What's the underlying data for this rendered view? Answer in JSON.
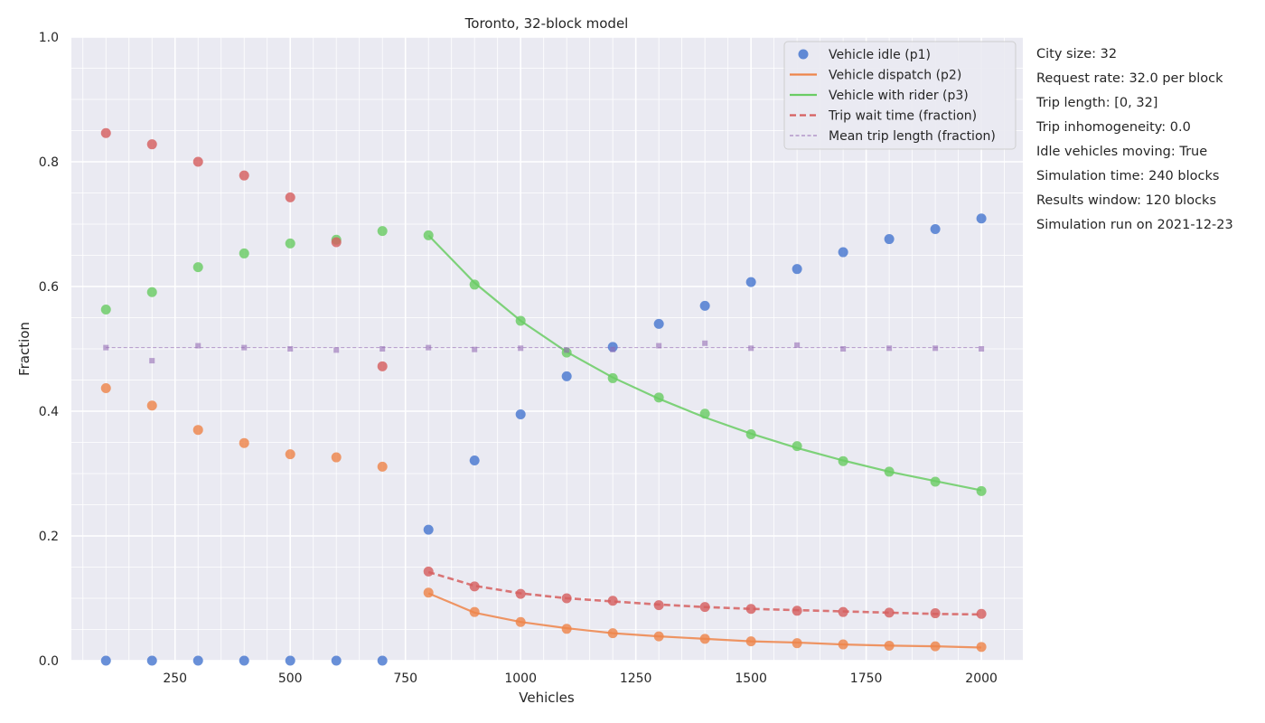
{
  "chart_data": {
    "type": "scatter",
    "title": "Toronto, 32-block model",
    "xlabel": "Vehicles",
    "ylabel": "Fraction",
    "xlim": [
      25,
      2090
    ],
    "ylim": [
      0,
      1
    ],
    "xticks": [
      250,
      500,
      750,
      1000,
      1250,
      1500,
      1750,
      2000
    ],
    "yticks": [
      0.0,
      0.2,
      0.4,
      0.6,
      0.8,
      1.0
    ],
    "grid": true,
    "legend_position": "top-right",
    "x": [
      100,
      200,
      300,
      400,
      500,
      600,
      700,
      800,
      900,
      1000,
      1100,
      1200,
      1300,
      1400,
      1500,
      1600,
      1700,
      1800,
      1900,
      2000
    ],
    "series": [
      {
        "name": "Vehicle idle (p1)",
        "color": "#4878d0",
        "marker": "circle",
        "values": [
          0.0,
          0.0,
          0.0,
          0.0,
          0.0,
          0.0,
          0.0,
          0.21,
          0.321,
          0.395,
          0.456,
          0.503,
          0.54,
          0.569,
          0.607,
          0.628,
          0.655,
          0.676,
          0.692,
          0.709
        ]
      },
      {
        "name": "Vehicle dispatch (p2)",
        "color": "#ee854a",
        "marker": "circle",
        "values": [
          0.437,
          0.409,
          0.37,
          0.349,
          0.331,
          0.326,
          0.311,
          0.109,
          0.078,
          0.062,
          0.051,
          0.044,
          0.039,
          0.035,
          0.031,
          0.028,
          0.026,
          0.024,
          0.023,
          0.022
        ],
        "fit": [
          [
            800,
            0.108
          ],
          [
            900,
            0.077
          ],
          [
            1000,
            0.062
          ],
          [
            1100,
            0.052
          ],
          [
            1200,
            0.044
          ],
          [
            1300,
            0.039
          ],
          [
            1400,
            0.035
          ],
          [
            1500,
            0.031
          ],
          [
            1600,
            0.029
          ],
          [
            1700,
            0.026
          ],
          [
            1800,
            0.024
          ],
          [
            1900,
            0.023
          ],
          [
            2000,
            0.021
          ]
        ]
      },
      {
        "name": "Vehicle with rider (p3)",
        "color": "#6acc64",
        "marker": "circle",
        "values": [
          0.563,
          0.591,
          0.631,
          0.653,
          0.669,
          0.675,
          0.689,
          0.682,
          0.603,
          0.545,
          0.494,
          0.453,
          0.422,
          0.396,
          0.363,
          0.344,
          0.32,
          0.303,
          0.287,
          0.272
        ],
        "fit": [
          [
            800,
            0.682
          ],
          [
            900,
            0.606
          ],
          [
            1000,
            0.545
          ],
          [
            1100,
            0.495
          ],
          [
            1200,
            0.454
          ],
          [
            1300,
            0.42
          ],
          [
            1400,
            0.39
          ],
          [
            1500,
            0.364
          ],
          [
            1600,
            0.341
          ],
          [
            1700,
            0.321
          ],
          [
            1800,
            0.303
          ],
          [
            1900,
            0.288
          ],
          [
            2000,
            0.273
          ]
        ]
      },
      {
        "name": "Trip wait time (fraction)",
        "color": "#d65f5f",
        "marker": "circle",
        "values": [
          0.846,
          0.828,
          0.8,
          0.778,
          0.743,
          0.671,
          0.472,
          0.143,
          0.119,
          0.107,
          0.1,
          0.096,
          0.089,
          0.086,
          0.083,
          0.08,
          0.078,
          0.077,
          0.076,
          0.075
        ],
        "fit": [
          [
            800,
            0.142
          ],
          [
            900,
            0.12
          ],
          [
            1000,
            0.108
          ],
          [
            1100,
            0.1
          ],
          [
            1200,
            0.095
          ],
          [
            1300,
            0.09
          ],
          [
            1400,
            0.086
          ],
          [
            1500,
            0.083
          ],
          [
            1600,
            0.081
          ],
          [
            1700,
            0.079
          ],
          [
            1800,
            0.077
          ],
          [
            1900,
            0.075
          ],
          [
            2000,
            0.074
          ]
        ]
      },
      {
        "name": "Mean trip length (fraction)",
        "color": "#956cb4",
        "marker": "square",
        "values": [
          0.502,
          0.481,
          0.505,
          0.502,
          0.5,
          0.498,
          0.5,
          0.502,
          0.499,
          0.501,
          0.498,
          0.499,
          0.505,
          0.509,
          0.501,
          0.506,
          0.5,
          0.501,
          0.501,
          0.5
        ],
        "fit": [
          [
            100,
            0.502
          ],
          [
            2000,
            0.502
          ]
        ]
      }
    ]
  },
  "info_lines": [
    "City size: 32",
    "Request rate: 32.0 per block",
    "Trip length: [0, 32]",
    "Trip inhomogeneity: 0.0",
    "Idle vehicles moving: True",
    "Simulation time: 240 blocks",
    "Results window: 120 blocks",
    "Simulation run on 2021-12-23"
  ]
}
